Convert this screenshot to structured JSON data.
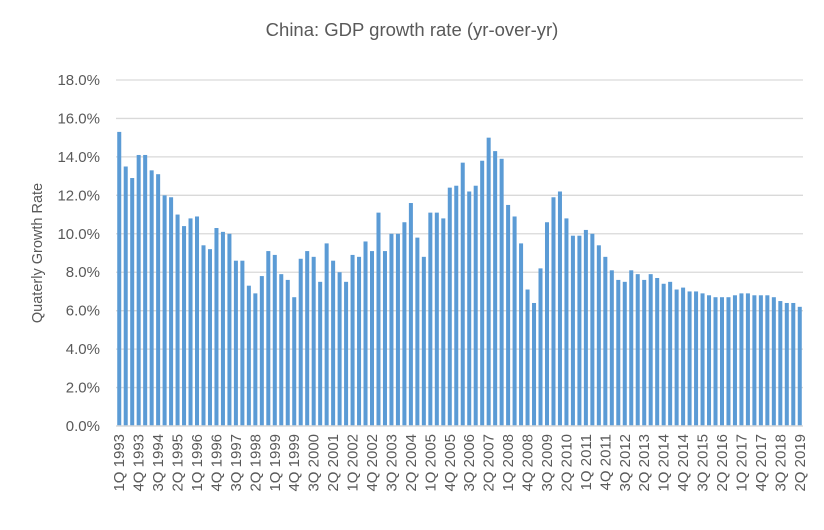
{
  "chart_data": {
    "type": "bar",
    "title": "China:  GDP growth rate (yr-over-yr)",
    "xlabel": "",
    "ylabel": "Quaterly Growth Rate",
    "ylim": [
      0,
      18
    ],
    "y_tick_step": 2,
    "y_tick_labels": [
      "0.0%",
      "2.0%",
      "4.0%",
      "6.0%",
      "8.0%",
      "10.0%",
      "12.0%",
      "14.0%",
      "16.0%",
      "18.0%"
    ],
    "grid": true,
    "legend": "none",
    "x_label_every": 3,
    "bar_color": "#5b9bd5",
    "grid_color": "#d9d9d9",
    "text_color": "#595959",
    "categories": [
      "1Q 1993",
      "2Q 1993",
      "3Q 1993",
      "4Q 1993",
      "1Q 1994",
      "2Q 1994",
      "3Q 1994",
      "4Q 1994",
      "1Q 1995",
      "2Q 1995",
      "3Q 1995",
      "4Q 1995",
      "1Q 1996",
      "2Q 1996",
      "3Q 1996",
      "4Q 1996",
      "1Q 1997",
      "2Q 1997",
      "3Q 1997",
      "4Q 1997",
      "1Q 1998",
      "2Q 1998",
      "3Q 1998",
      "4Q 1998",
      "1Q 1999",
      "2Q 1999",
      "3Q 1999",
      "4Q 1999",
      "1Q 2000",
      "2Q 2000",
      "3Q 2000",
      "4Q 2000",
      "1Q 2001",
      "2Q 2001",
      "3Q 2001",
      "4Q 2001",
      "1Q 2002",
      "2Q 2002",
      "3Q 2002",
      "4Q 2002",
      "1Q 2003",
      "2Q 2003",
      "3Q 2003",
      "4Q 2003",
      "1Q 2004",
      "2Q 2004",
      "3Q 2004",
      "4Q 2004",
      "1Q 2005",
      "2Q 2005",
      "3Q 2005",
      "4Q 2005",
      "1Q 2006",
      "2Q 2006",
      "3Q 2006",
      "4Q 2006",
      "1Q 2007",
      "2Q 2007",
      "3Q 2007",
      "4Q 2007",
      "1Q 2008",
      "2Q 2008",
      "3Q 2008",
      "4Q 2008",
      "1Q 2009",
      "2Q 2009",
      "3Q 2009",
      "4Q 2009",
      "1Q 2010",
      "2Q 2010",
      "3Q 2010",
      "4Q 2010",
      "1Q 2011",
      "2Q 2011",
      "3Q 2011",
      "4Q 2011",
      "1Q 2012",
      "2Q 2012",
      "3Q 2012",
      "4Q 2012",
      "1Q 2013",
      "2Q 2013",
      "3Q 2013",
      "4Q 2013",
      "1Q 2014",
      "2Q 2014",
      "3Q 2014",
      "4Q 2014",
      "1Q 2015",
      "2Q 2015",
      "3Q 2015",
      "4Q 2015",
      "1Q 2016",
      "2Q 2016",
      "3Q 2016",
      "4Q 2016",
      "1Q 2017",
      "2Q 2017",
      "3Q 2017",
      "4Q 2017",
      "1Q 2018",
      "2Q 2018",
      "3Q 2018",
      "4Q 2018",
      "1Q 2019",
      "2Q 2019"
    ],
    "values": [
      15.3,
      13.5,
      12.9,
      14.1,
      14.1,
      13.3,
      13.1,
      12.0,
      11.9,
      11.0,
      10.4,
      10.8,
      10.9,
      9.4,
      9.2,
      10.3,
      10.1,
      10.0,
      8.6,
      8.6,
      7.3,
      6.9,
      7.8,
      9.1,
      8.9,
      7.9,
      7.6,
      6.7,
      8.7,
      9.1,
      8.8,
      7.5,
      9.5,
      8.6,
      8.0,
      7.5,
      8.9,
      8.8,
      9.6,
      9.1,
      11.1,
      9.1,
      10.0,
      10.0,
      10.6,
      11.6,
      9.8,
      8.8,
      11.1,
      11.1,
      10.8,
      12.4,
      12.5,
      13.7,
      12.2,
      12.5,
      13.8,
      15.0,
      14.3,
      13.9,
      11.5,
      10.9,
      9.5,
      7.1,
      6.4,
      8.2,
      10.6,
      11.9,
      12.2,
      10.8,
      9.9,
      9.9,
      10.2,
      10.0,
      9.4,
      8.8,
      8.1,
      7.6,
      7.5,
      8.1,
      7.9,
      7.6,
      7.9,
      7.7,
      7.4,
      7.5,
      7.1,
      7.2,
      7.0,
      7.0,
      6.9,
      6.8,
      6.7,
      6.7,
      6.7,
      6.8,
      6.9,
      6.9,
      6.8,
      6.8,
      6.8,
      6.7,
      6.5,
      6.4,
      6.4,
      6.2
    ]
  }
}
